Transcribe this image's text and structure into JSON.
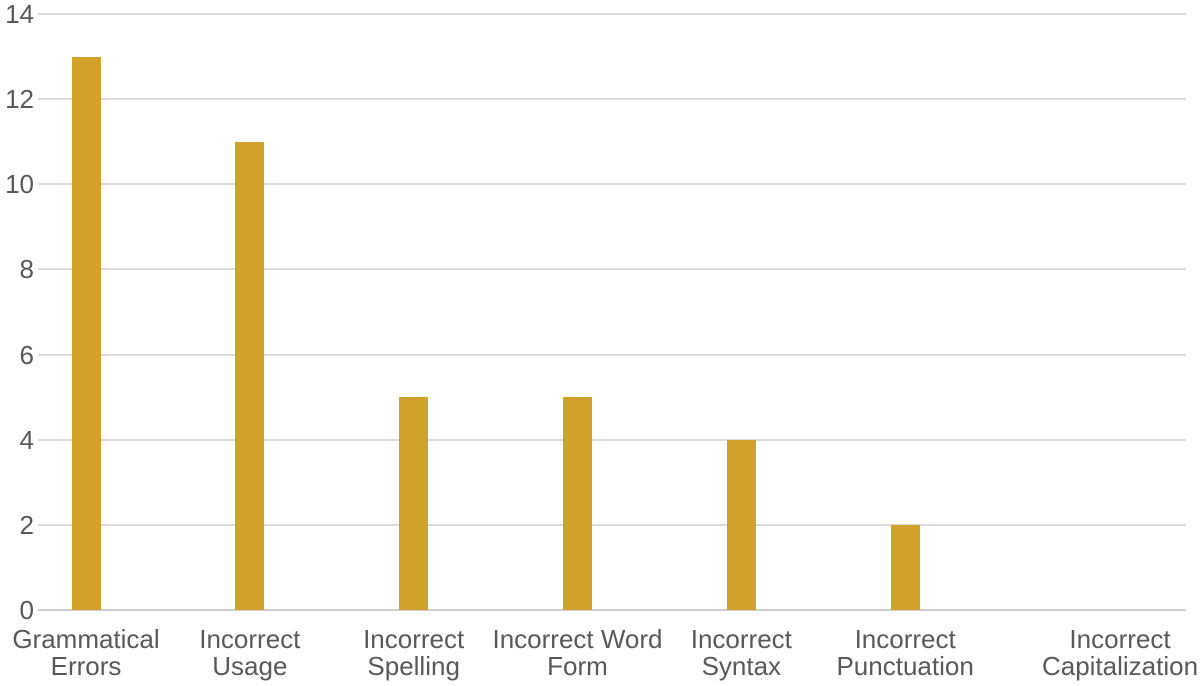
{
  "chart_data": {
    "type": "bar",
    "title": "",
    "xlabel": "",
    "ylabel": "",
    "categories": [
      "Grammatical Errors",
      "Incorrect Usage",
      "Incorrect Spelling",
      "Incorrect Word Form",
      "Incorrect Syntax",
      "Incorrect Punctuation",
      "Incorrect Capitalization"
    ],
    "values": [
      13,
      11,
      5,
      5,
      4,
      2,
      0
    ],
    "ylim": [
      0,
      14
    ],
    "ytick_interval": 2,
    "grid": true,
    "legend": false,
    "bar_color": "#D0A22C"
  },
  "y_axis": {
    "tick_labels": [
      "14",
      "12",
      "10",
      "8",
      "6",
      "4",
      "2",
      "0"
    ],
    "tick_values": [
      14,
      12,
      10,
      8,
      6,
      4,
      2,
      0
    ]
  },
  "x_axis": {
    "display_labels": [
      "Grammatical\nErrors",
      "Incorrect\nUsage",
      "Incorrect\nSpelling",
      "Incorrect Word\nForm",
      "Incorrect\nSyntax",
      "Incorrect\nPunctuation",
      "Incorrect\nCapitalization"
    ]
  },
  "colors": {
    "bar": "#D0A22C",
    "gridline": "#DADADA",
    "axis_line": "#D0D0D0",
    "text": "#595959",
    "background": "#FFFFFF"
  }
}
